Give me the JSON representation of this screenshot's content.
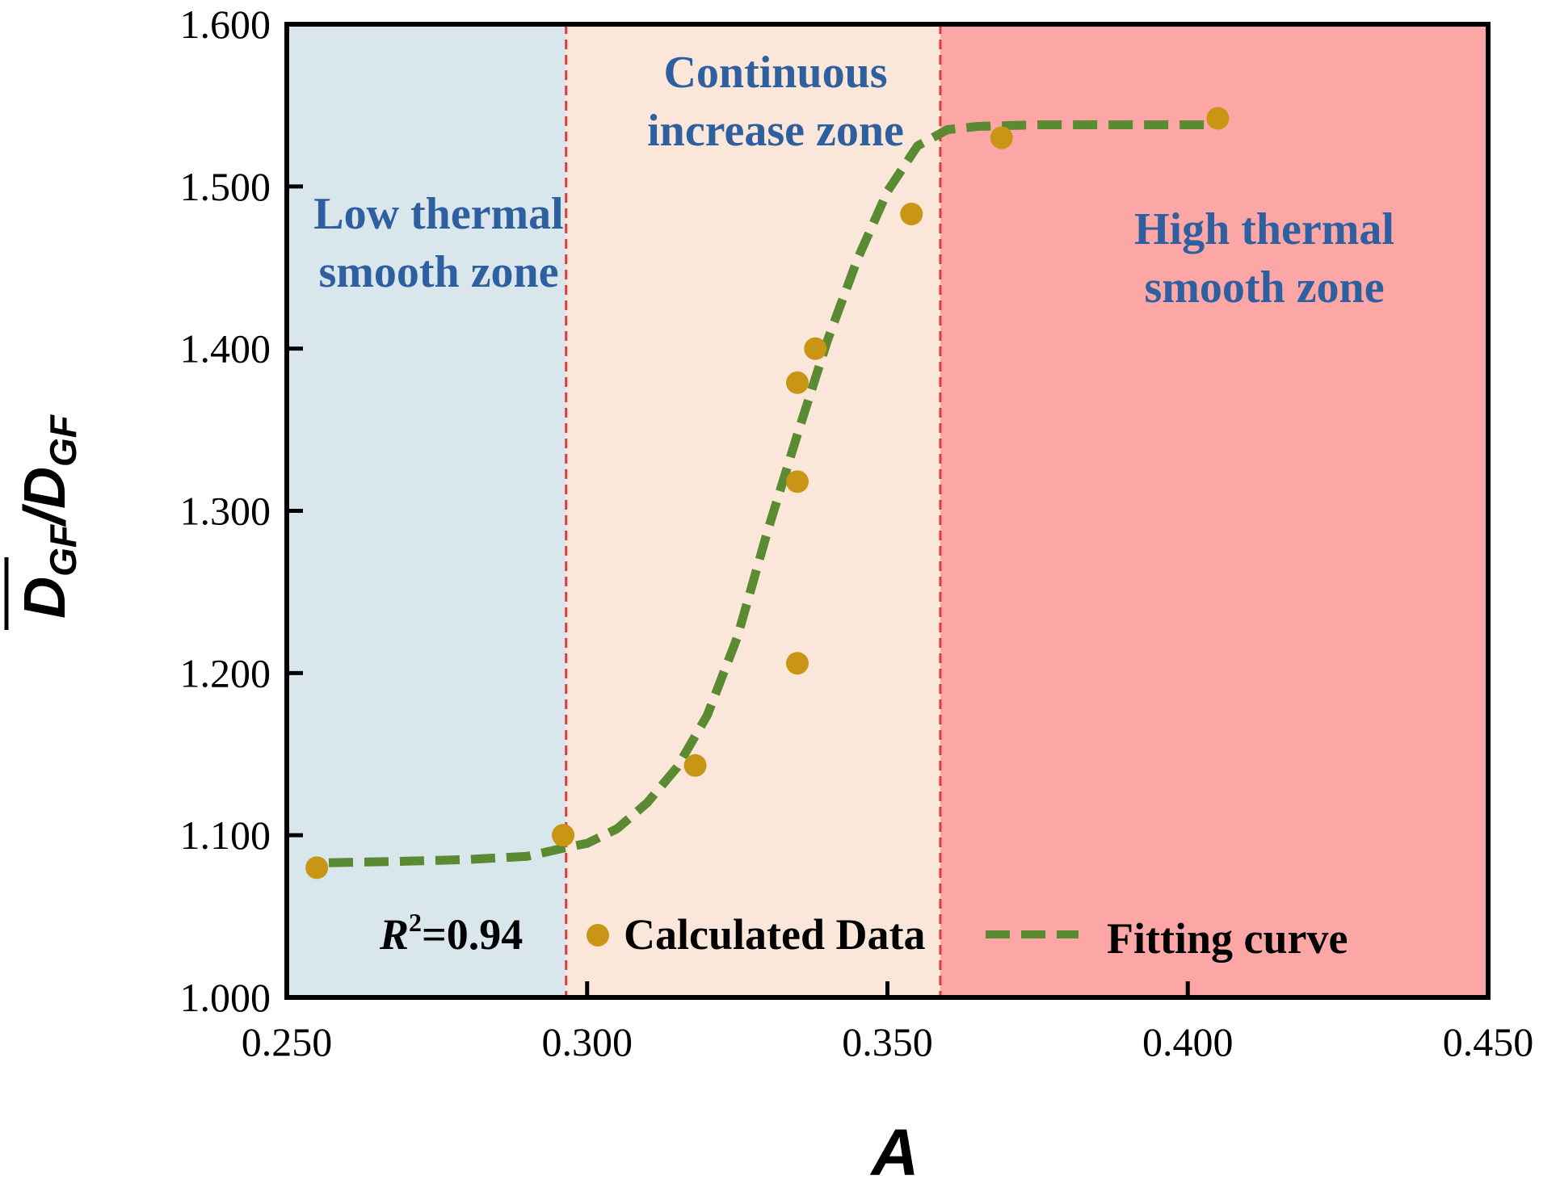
{
  "chart_data": {
    "type": "scatter",
    "title": "",
    "xlabel": "A",
    "ylabel": {
      "numerator": "D",
      "numerator_sub": "GF",
      "slash": "/",
      "denominator": "D",
      "denominator_sub": "GF"
    },
    "xlim": [
      0.25,
      0.45
    ],
    "ylim": [
      1.0,
      1.6
    ],
    "x_ticks": [
      0.25,
      0.3,
      0.35,
      0.4,
      0.45
    ],
    "x_tick_labels": [
      "0.250",
      "0.300",
      "0.350",
      "0.400",
      "0.450"
    ],
    "y_ticks": [
      1.0,
      1.1,
      1.2,
      1.3,
      1.4,
      1.5,
      1.6
    ],
    "y_tick_labels": [
      "1.000",
      "1.100",
      "1.200",
      "1.300",
      "1.400",
      "1.500",
      "1.600"
    ],
    "zones": [
      {
        "name": "low",
        "label_lines": [
          "Low thermal",
          "smooth zone"
        ],
        "x_range": [
          0.25,
          0.2965
        ],
        "color": "#d9e7ed"
      },
      {
        "name": "continuous",
        "label_lines": [
          "Continuous",
          "increase zone"
        ],
        "x_range": [
          0.2965,
          0.3588
        ],
        "color": "#fbe7d9"
      },
      {
        "name": "high",
        "label_lines": [
          "High thermal",
          "smooth zone"
        ],
        "x_range": [
          0.3588,
          0.45
        ],
        "color": "#fca6a6"
      }
    ],
    "zone_label_color": "#2e5f9e",
    "boundaries": [
      0.2965,
      0.3588
    ],
    "boundary_color": "#e03a3a",
    "series": [
      {
        "name": "Calculated Data",
        "kind": "scatter",
        "color": "#c89514",
        "x": [
          0.255,
          0.296,
          0.318,
          0.335,
          0.335,
          0.335,
          0.338,
          0.354,
          0.369,
          0.405
        ],
        "y": [
          1.08,
          1.1,
          1.143,
          1.206,
          1.318,
          1.379,
          1.4,
          1.483,
          1.53,
          1.542
        ]
      },
      {
        "name": "Fitting curve",
        "kind": "line",
        "style": "dashed",
        "color": "#5a8a32",
        "x": [
          0.257,
          0.27,
          0.28,
          0.29,
          0.296,
          0.3,
          0.305,
          0.31,
          0.315,
          0.32,
          0.325,
          0.33,
          0.335,
          0.34,
          0.345,
          0.35,
          0.355,
          0.36,
          0.365,
          0.375,
          0.385,
          0.395,
          0.405
        ],
        "y": [
          1.083,
          1.084,
          1.085,
          1.087,
          1.092,
          1.095,
          1.104,
          1.12,
          1.142,
          1.174,
          1.222,
          1.287,
          1.347,
          1.405,
          1.455,
          1.497,
          1.525,
          1.535,
          1.537,
          1.538,
          1.538,
          1.538,
          1.538
        ]
      }
    ],
    "annotation": {
      "text_R": "R",
      "text_exp": "2",
      "text_value": "=0.94"
    },
    "legend_position": "bottom"
  }
}
